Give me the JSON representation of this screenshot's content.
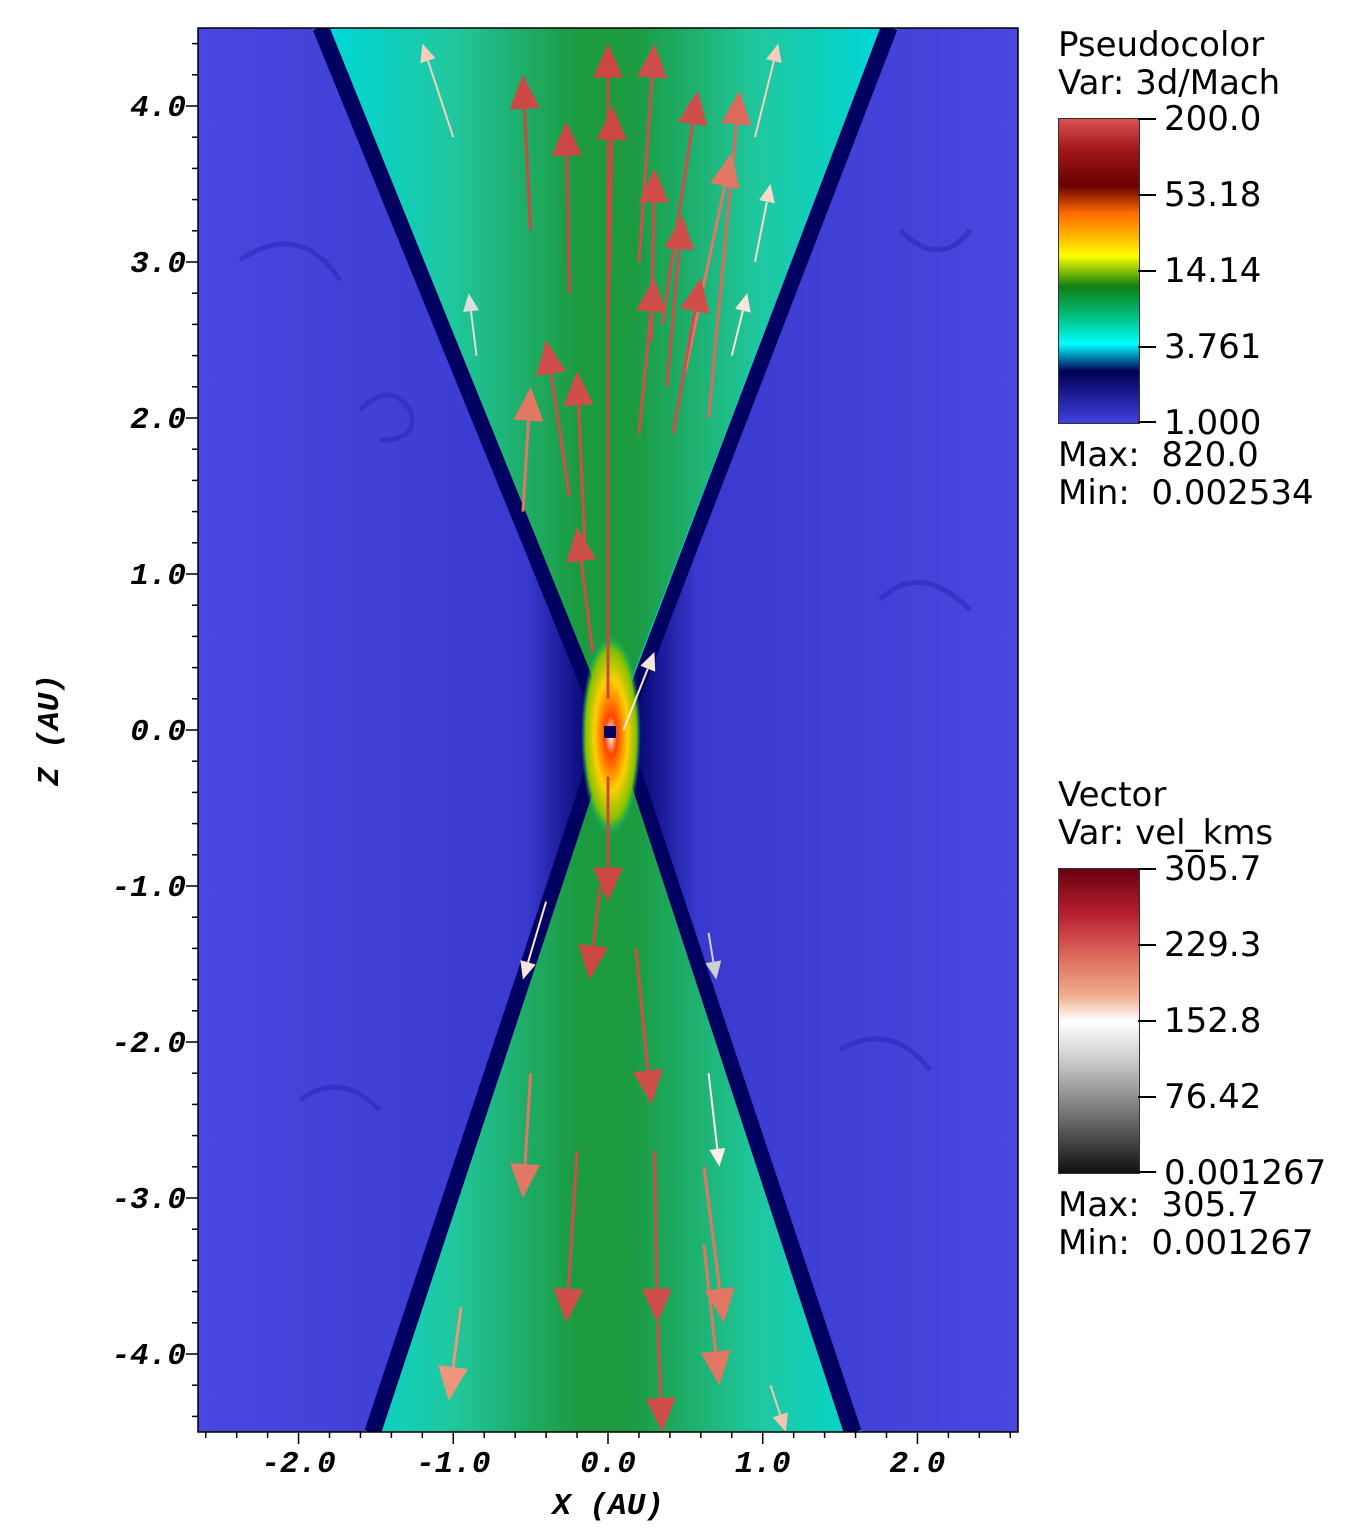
{
  "chart_data": {
    "type": "heatmap",
    "xlabel": "X (AU)",
    "ylabel": "Z (AU)",
    "xlim": [
      -2.65,
      2.65
    ],
    "ylim": [
      -4.5,
      4.5
    ],
    "x_ticks": [
      "-2.0",
      "-1.0",
      "0.0",
      "1.0",
      "2.0"
    ],
    "x_tick_values": [
      -2,
      -1,
      0,
      1,
      2
    ],
    "y_ticks": [
      "4.0",
      "3.0",
      "2.0",
      "1.0",
      "0.0",
      "-1.0",
      "-2.0",
      "-3.0",
      "-4.0"
    ],
    "y_tick_values": [
      4,
      3,
      2,
      1,
      0,
      -1,
      -2,
      -3,
      -4
    ],
    "pseudocolor": {
      "plot_type": "Pseudocolor",
      "var_label": "Var: 3d/Mach",
      "scale": "log",
      "colorbar_labels": [
        "200.0",
        "53.18",
        "14.14",
        "3.761",
        "1.000"
      ],
      "colors": [
        "#d85050",
        "#6a0000",
        "#ff6a00",
        "#ffff00",
        "#108010",
        "#00c080",
        "#00ffff",
        "#000055",
        "#4040e0"
      ],
      "max_label": "Max:",
      "max_value": "820.0",
      "min_label": "Min:",
      "min_value": "0.002534"
    },
    "vector": {
      "plot_type": "Vector",
      "var_label": "Var: vel_kms",
      "colorbar_labels": [
        "305.7",
        "229.3",
        "152.8",
        "76.42",
        "0.001267"
      ],
      "colors": [
        "#6a0010",
        "#b82030",
        "#e89070",
        "#ffffff",
        "#909090",
        "#101010"
      ],
      "max_label": "Max:",
      "max_value": "305.7",
      "min_label": "Min:",
      "min_value": "0.001267",
      "arrows": [
        {
          "x0": 0.0,
          "z0": 0.2,
          "x1": 0.0,
          "z1": 4.4,
          "v": 260
        },
        {
          "x0": -0.5,
          "z0": 3.2,
          "x1": -0.55,
          "z1": 4.2,
          "v": 260
        },
        {
          "x0": -0.25,
          "z0": 2.8,
          "x1": -0.27,
          "z1": 3.9,
          "v": 260
        },
        {
          "x0": 0.0,
          "z0": 2.6,
          "x1": 0.03,
          "z1": 4.0,
          "v": 260
        },
        {
          "x0": 0.2,
          "z0": 3.0,
          "x1": 0.3,
          "z1": 4.4,
          "v": 255
        },
        {
          "x0": 0.28,
          "z0": 2.5,
          "x1": 0.3,
          "z1": 3.6,
          "v": 255
        },
        {
          "x0": 0.35,
          "z0": 2.6,
          "x1": 0.58,
          "z1": 4.1,
          "v": 255
        },
        {
          "x0": 0.65,
          "z0": 2.0,
          "x1": 0.85,
          "z1": 4.1,
          "v": 235
        },
        {
          "x0": 0.5,
          "z0": 2.3,
          "x1": 0.8,
          "z1": 3.7,
          "v": 225
        },
        {
          "x0": 0.38,
          "z0": 2.2,
          "x1": 0.48,
          "z1": 3.3,
          "v": 255
        },
        {
          "x0": 0.2,
          "z0": 1.9,
          "x1": 0.3,
          "z1": 2.9,
          "v": 255
        },
        {
          "x0": 0.42,
          "z0": 1.9,
          "x1": 0.6,
          "z1": 2.9,
          "v": 255
        },
        {
          "x0": -0.25,
          "z0": 1.5,
          "x1": -0.4,
          "z1": 2.5,
          "v": 255
        },
        {
          "x0": -0.15,
          "z0": 1.2,
          "x1": -0.2,
          "z1": 2.3,
          "v": 255
        },
        {
          "x0": -0.55,
          "z0": 1.4,
          "x1": -0.5,
          "z1": 2.2,
          "v": 225
        },
        {
          "x0": -0.1,
          "z0": 0.5,
          "x1": -0.2,
          "z1": 1.3,
          "v": 255
        },
        {
          "x0": 0.1,
          "z0": 0.0,
          "x1": 0.3,
          "z1": 0.5,
          "v": 165
        },
        {
          "x0": -1.0,
          "z0": 3.8,
          "x1": -1.2,
          "z1": 4.4,
          "v": 175
        },
        {
          "x0": 0.95,
          "z0": 3.8,
          "x1": 1.1,
          "z1": 4.4,
          "v": 175
        },
        {
          "x0": 0.95,
          "z0": 3.0,
          "x1": 1.05,
          "z1": 3.5,
          "v": 170
        },
        {
          "x0": 0.8,
          "z0": 2.4,
          "x1": 0.9,
          "z1": 2.8,
          "v": 165
        },
        {
          "x0": -0.85,
          "z0": 2.4,
          "x1": -0.9,
          "z1": 2.8,
          "v": 130
        },
        {
          "x0": 0.0,
          "z0": -0.3,
          "x1": 0.0,
          "z1": -1.1,
          "v": 260
        },
        {
          "x0": -0.05,
          "z0": -1.0,
          "x1": -0.12,
          "z1": -1.6,
          "v": 260
        },
        {
          "x0": 0.18,
          "z0": -1.4,
          "x1": 0.28,
          "z1": -2.4,
          "v": 255
        },
        {
          "x0": -0.4,
          "z0": -1.1,
          "x1": -0.55,
          "z1": -1.6,
          "v": 165
        },
        {
          "x0": 0.65,
          "z0": -1.3,
          "x1": 0.7,
          "z1": -1.6,
          "v": 120
        },
        {
          "x0": -0.5,
          "z0": -2.2,
          "x1": -0.55,
          "z1": -3.0,
          "v": 225
        },
        {
          "x0": -0.2,
          "z0": -2.7,
          "x1": -0.27,
          "z1": -3.8,
          "v": 255
        },
        {
          "x0": 0.3,
          "z0": -2.7,
          "x1": 0.32,
          "z1": -3.8,
          "v": 255
        },
        {
          "x0": 0.65,
          "z0": -2.2,
          "x1": 0.72,
          "z1": -2.8,
          "v": 160
        },
        {
          "x0": 0.62,
          "z0": -2.8,
          "x1": 0.75,
          "z1": -3.8,
          "v": 225
        },
        {
          "x0": 0.62,
          "z0": -3.3,
          "x1": 0.72,
          "z1": -4.2,
          "v": 225
        },
        {
          "x0": -0.95,
          "z0": -3.7,
          "x1": -1.03,
          "z1": -4.3,
          "v": 205
        },
        {
          "x0": 0.32,
          "z0": -3.8,
          "x1": 0.35,
          "z1": -4.5,
          "v": 255
        },
        {
          "x0": 1.05,
          "z0": -4.2,
          "x1": 1.15,
          "z1": -4.5,
          "v": 180
        }
      ]
    }
  }
}
